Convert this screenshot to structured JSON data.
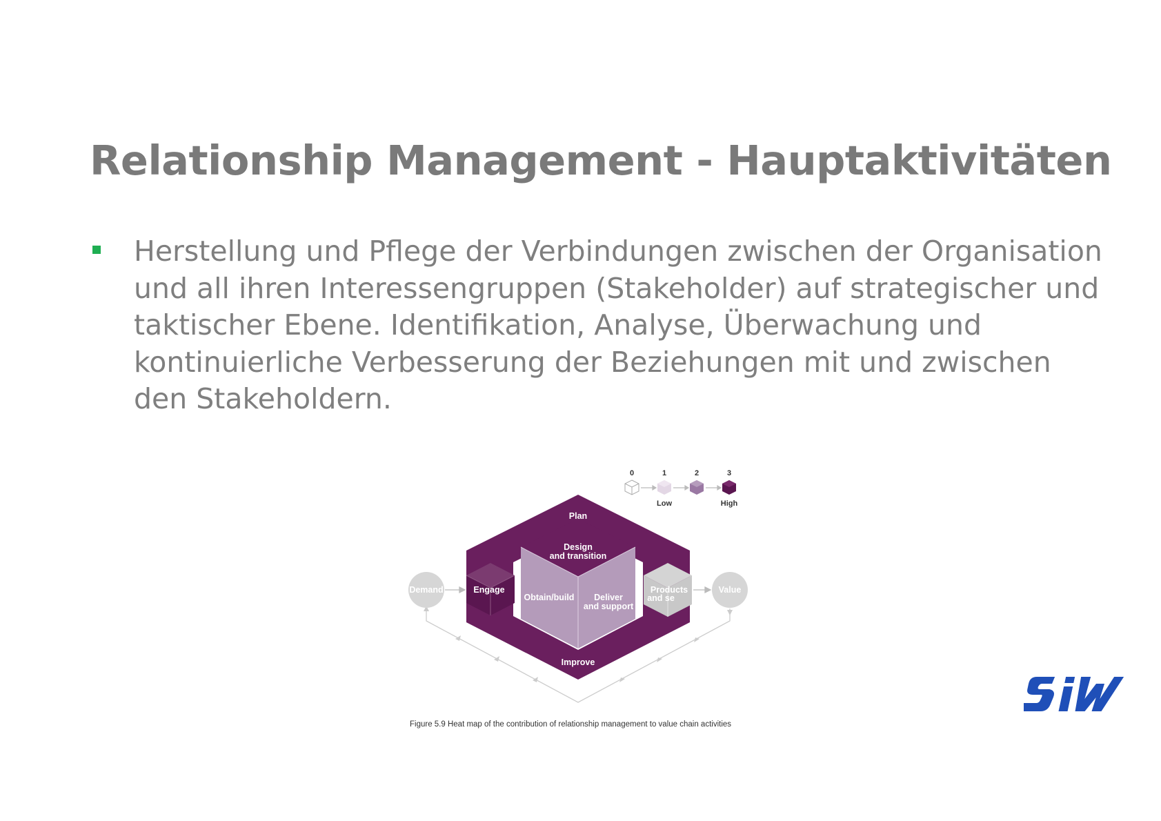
{
  "slide": {
    "title": "Relationship Management - Hauptaktivitäten",
    "bullet_lines": [
      "Herstellung und Pflege der Verbindungen zwischen der Organisation",
      "und all ihren Interessengruppen (Stakeholder) auf strategischer und",
      "taktischer Ebene. Identifikation, Analyse, Überwachung und",
      "kontinuierliche Verbesserung der Beziehungen mit und zwischen",
      "den Stakeholdern."
    ],
    "bullet_color": "#1fae52"
  },
  "figure": {
    "legend": {
      "levels": [
        "0",
        "1",
        "2",
        "3"
      ],
      "low_label": "Low",
      "high_label": "High"
    },
    "labels": {
      "plan": "Plan",
      "design_1": "Design",
      "design_2": "and transition",
      "engage": "Engage",
      "obtain": "Obtain/build",
      "deliver_1": "Deliver",
      "deliver_2": "and support",
      "products_1": "Products",
      "products_2": "and se",
      "improve": "Improve",
      "demand": "Demand",
      "value": "Value"
    },
    "caption": "Figure 5.9  Heat map of the contribution of relationship management to value chain activities",
    "colors": {
      "high": "#6a1f5e",
      "medium": "#9a78a3",
      "low": "#c9b8cd",
      "none": "#d9d9d9"
    }
  },
  "logo": {
    "text": "SIW",
    "color": "#1f4fb8"
  }
}
